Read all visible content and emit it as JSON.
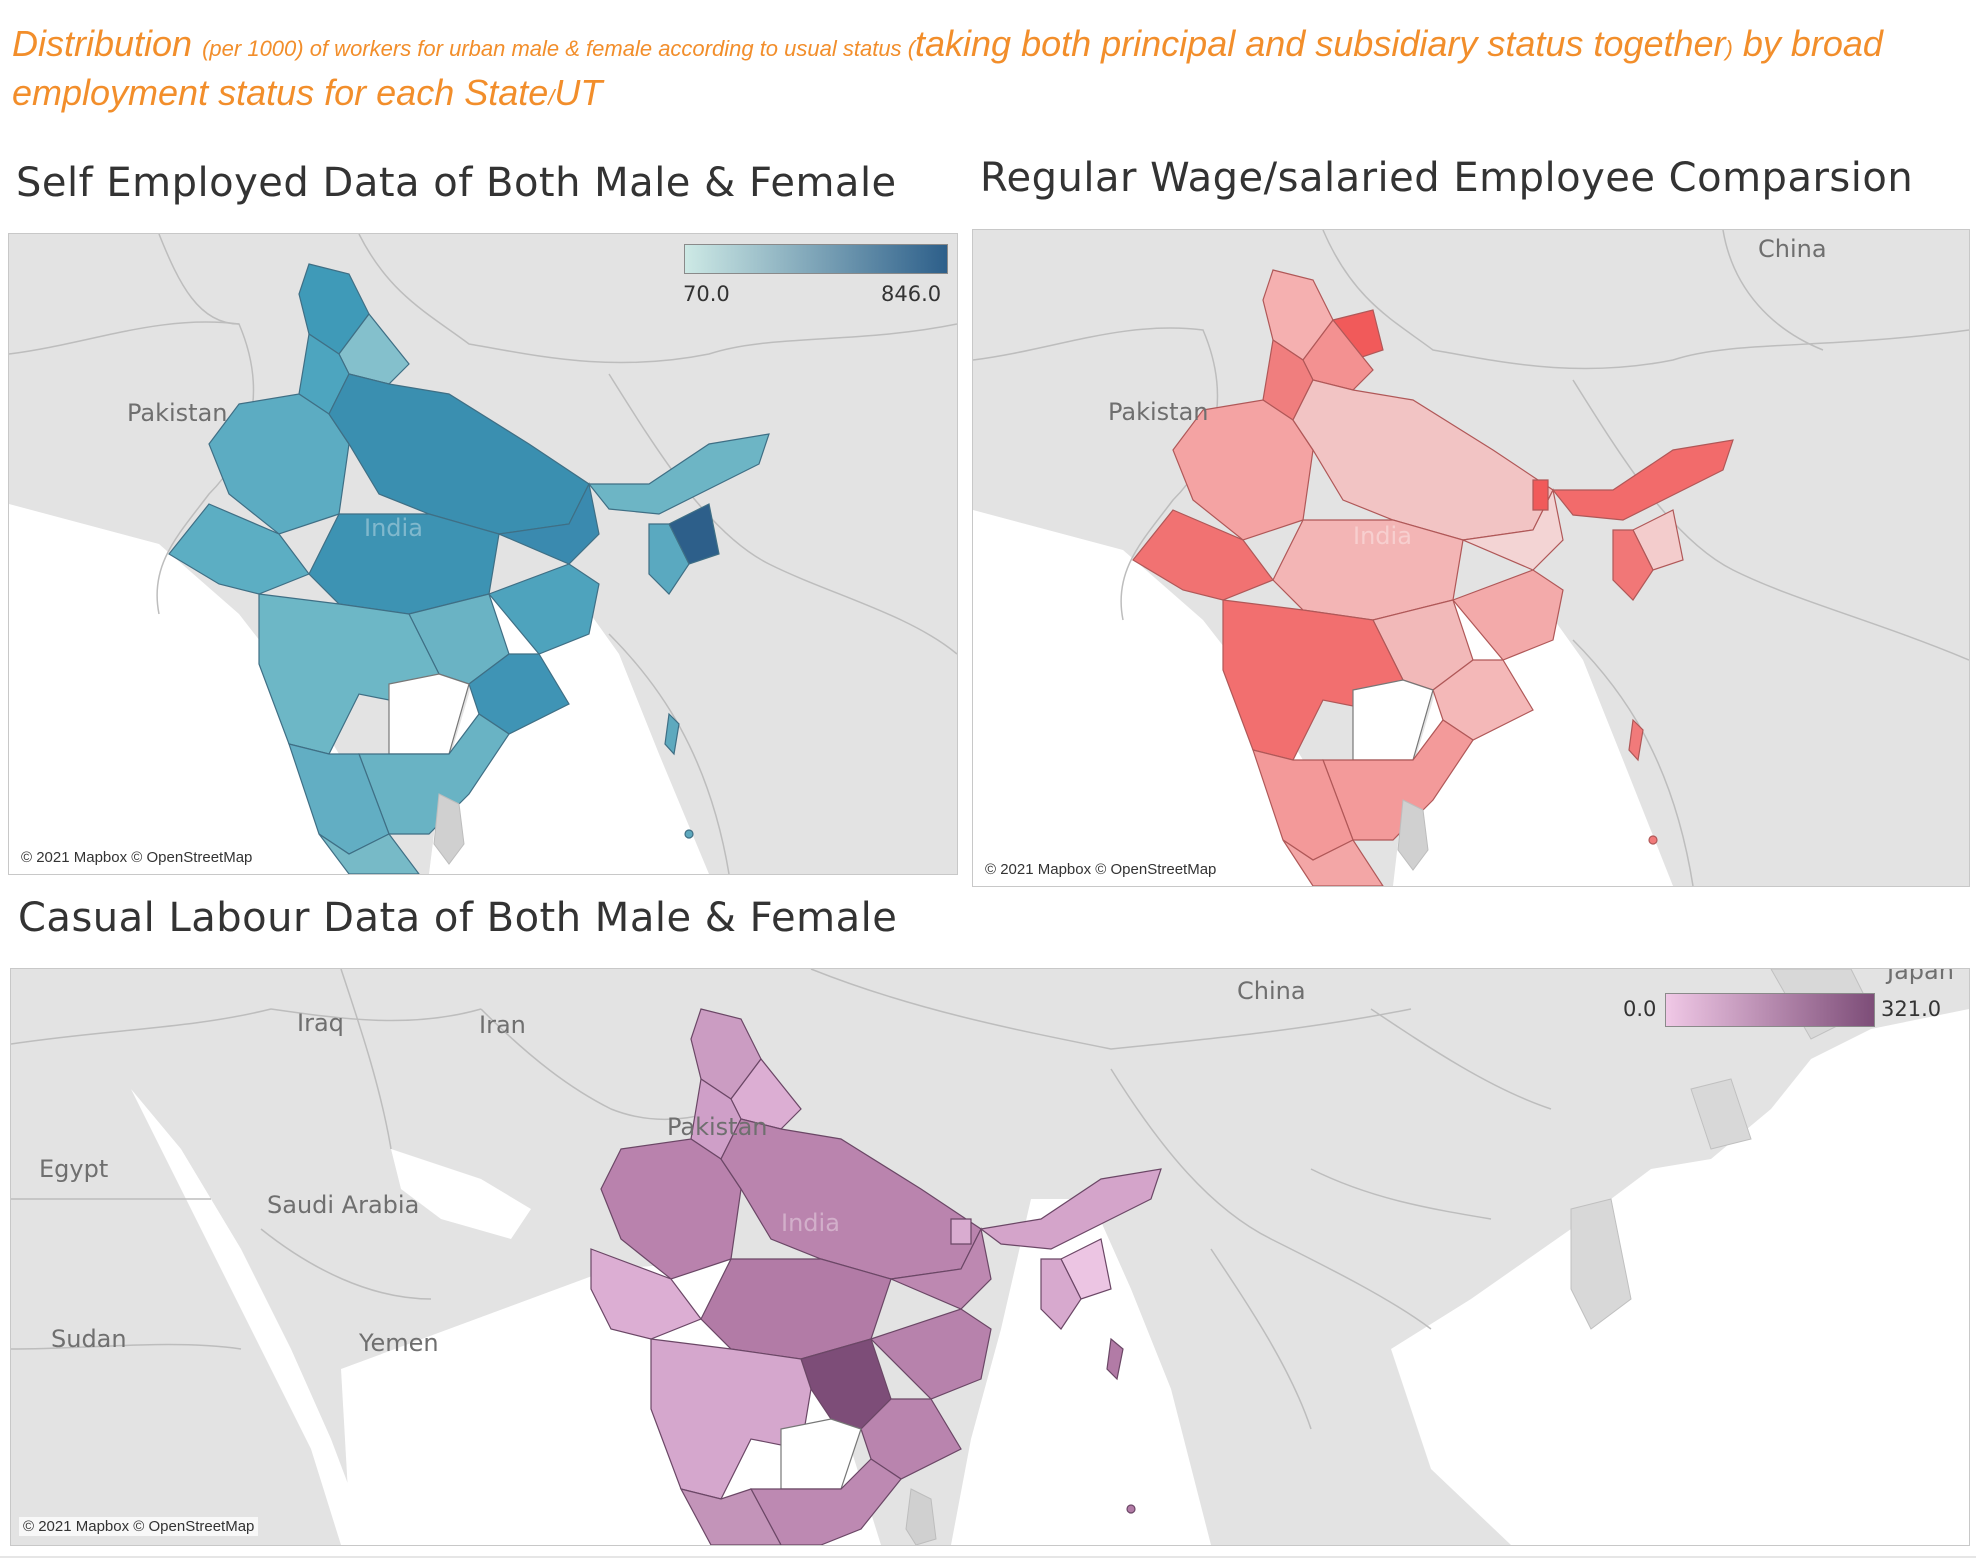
{
  "dashboard": {
    "title_parts": [
      "Distribution ",
      "(per ",
      "1000",
      ") of workers for urban male & female according to usual status ",
      "(",
      "taking both principal and subsidiary status together",
      ")",
      " by broad employment status for each State",
      "/",
      "UT"
    ],
    "title_color": "#f28e2b"
  },
  "maps": {
    "self_employed": {
      "title": "Self Employed Data of Both Male & Female",
      "legend_min": "70.0",
      "legend_max": "846.0",
      "color_low": "#cde9e5",
      "color_high": "#2d5f8a",
      "labels": {
        "pakistan": "Pakistan",
        "india": "India"
      },
      "attribution": "© 2021 Mapbox © OpenStreetMap"
    },
    "regular_wage": {
      "title": "Regular Wage/salaried Employee Comparsion",
      "color_low": "#f3d4d4",
      "color_high": "#f15a5a",
      "labels": {
        "pakistan": "Pakistan",
        "china": "China",
        "india": "India"
      },
      "attribution": "© 2021 Mapbox © OpenStreetMap"
    },
    "casual_labour": {
      "title": "Casual Labour Data of Both Male & Female",
      "legend_min": "0.0",
      "legend_max": "321.0",
      "color_low": "#f0c8e6",
      "color_high": "#7d4d78",
      "labels": {
        "iraq": "Iraq",
        "iran": "Iran",
        "china": "China",
        "japan": "Japan",
        "pakistan": "Pakistan",
        "egypt": "Egypt",
        "saudi_arabia": "Saudi Arabia",
        "sudan": "Sudan",
        "yemen": "Yemen",
        "india": "India"
      },
      "attribution": "© 2021 Mapbox © OpenStreetMap"
    }
  }
}
